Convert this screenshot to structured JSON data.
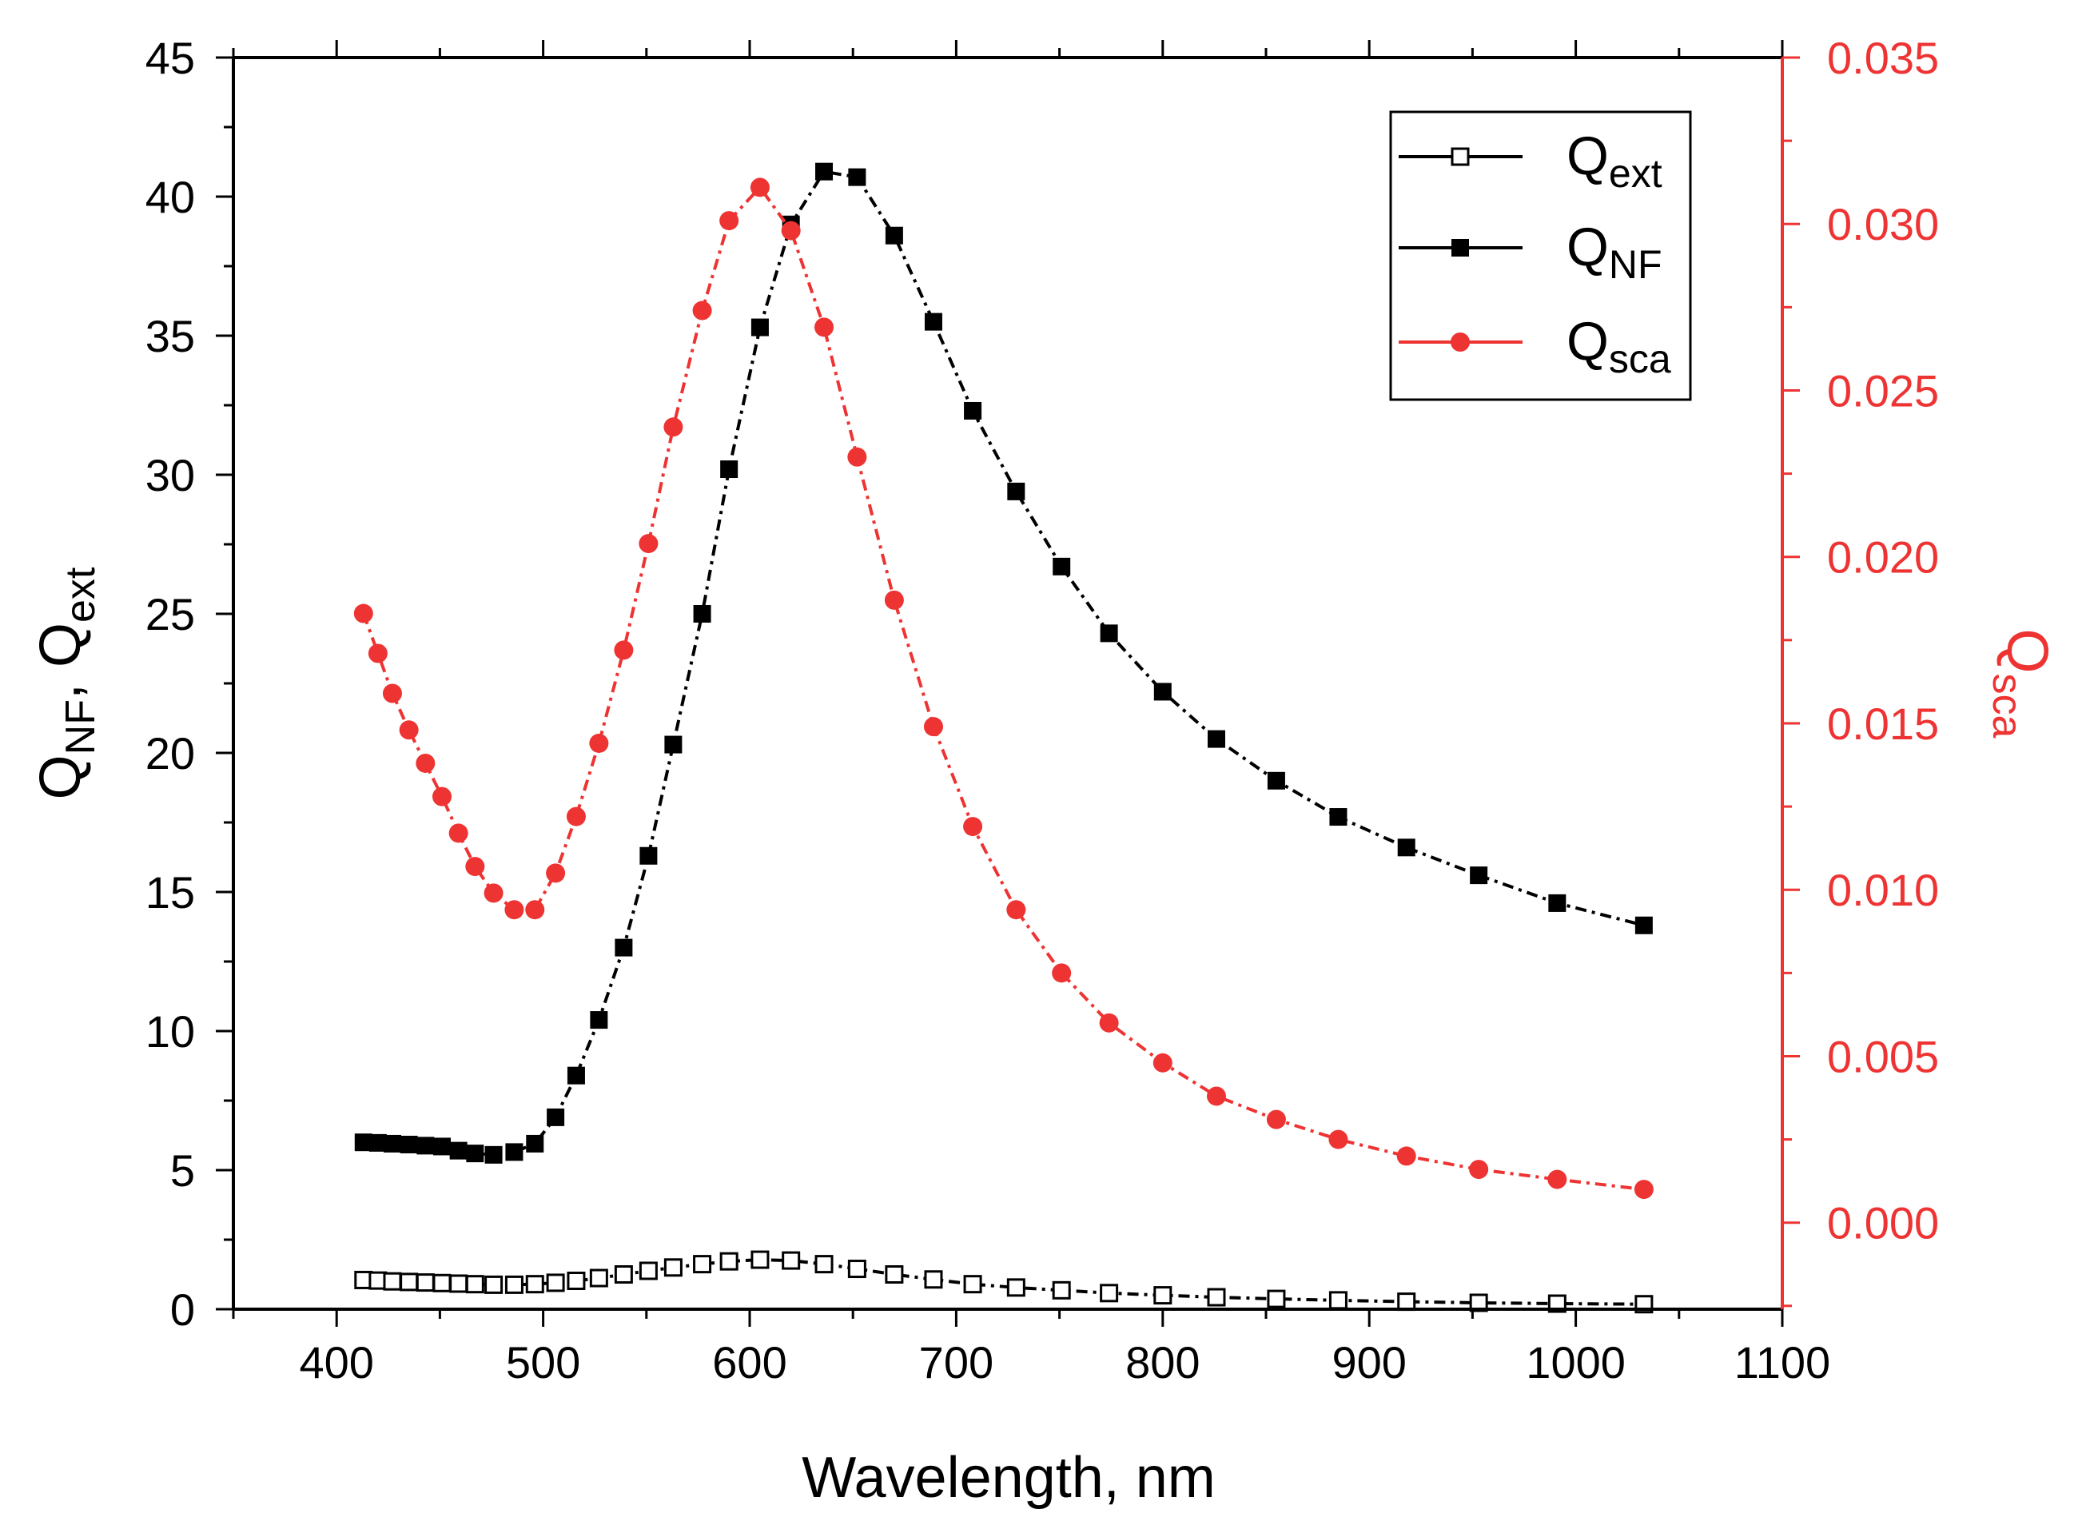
{
  "chart_data": {
    "type": "line",
    "title": "",
    "xlabel": "Wavelength, nm",
    "ylabel": {
      "main": "Q",
      "sub1": "NF",
      "sep": ", Q",
      "sub2": "ext"
    },
    "y2label": {
      "main": "Q",
      "sub": "sca"
    },
    "xlim": [
      350,
      1100
    ],
    "ylim": [
      0,
      45
    ],
    "y2lim": [
      -0.0026,
      0.035
    ],
    "xticks": [
      "400",
      "500",
      "600",
      "700",
      "800",
      "900",
      "1000",
      "1100"
    ],
    "yticks": [
      "0",
      "5",
      "10",
      "15",
      "20",
      "25",
      "30",
      "35",
      "40",
      "45"
    ],
    "y2ticks": [
      "0.000",
      "0.005",
      "0.010",
      "0.015",
      "0.020",
      "0.025",
      "0.030",
      "0.035"
    ],
    "legend_position": "top-right",
    "colors": {
      "black": "#000000",
      "red": "#ee3333"
    },
    "series": [
      {
        "name": "Q_ext",
        "legend": {
          "main": "Q",
          "sub": "ext"
        },
        "axis": "left",
        "marker": "open-square",
        "color": "#000000",
        "line_style": "dashdot",
        "x": [
          413,
          420,
          427,
          435,
          443,
          451,
          459,
          467,
          476,
          486,
          496,
          506,
          516,
          527,
          539,
          551,
          563,
          577,
          590,
          605,
          620,
          636,
          652,
          670,
          689,
          708,
          729,
          751,
          774,
          800,
          826,
          855,
          885,
          918,
          953,
          991,
          1033
        ],
        "y": [
          1.05,
          1.03,
          1.0,
          0.98,
          0.96,
          0.94,
          0.92,
          0.9,
          0.88,
          0.88,
          0.9,
          0.95,
          1.02,
          1.12,
          1.25,
          1.38,
          1.5,
          1.62,
          1.72,
          1.78,
          1.75,
          1.62,
          1.45,
          1.25,
          1.07,
          0.9,
          0.78,
          0.68,
          0.58,
          0.5,
          0.43,
          0.37,
          0.32,
          0.27,
          0.23,
          0.2,
          0.18
        ]
      },
      {
        "name": "Q_NF",
        "legend": {
          "main": "Q",
          "sub": "NF"
        },
        "axis": "left",
        "marker": "filled-square",
        "color": "#000000",
        "line_style": "dashdot",
        "x": [
          413,
          420,
          427,
          435,
          443,
          451,
          459,
          467,
          476,
          486,
          496,
          506,
          516,
          527,
          539,
          551,
          563,
          577,
          590,
          605,
          620,
          636,
          652,
          670,
          689,
          708,
          729,
          751,
          774,
          800,
          826,
          855,
          885,
          918,
          953,
          991,
          1033
        ],
        "y": [
          6.0,
          5.98,
          5.95,
          5.92,
          5.88,
          5.85,
          5.7,
          5.6,
          5.55,
          5.65,
          5.95,
          6.9,
          8.4,
          10.4,
          13.0,
          16.3,
          20.3,
          25.0,
          30.2,
          35.3,
          39.0,
          40.9,
          40.7,
          38.6,
          35.5,
          32.3,
          29.4,
          26.7,
          24.3,
          22.2,
          20.5,
          19.0,
          17.7,
          16.6,
          15.6,
          14.6,
          13.8
        ]
      },
      {
        "name": "Q_sca",
        "legend": {
          "main": "Q",
          "sub": "sca"
        },
        "axis": "right",
        "marker": "filled-circle",
        "color": "#ee3333",
        "line_style": "dashdot",
        "x": [
          413,
          420,
          427,
          435,
          443,
          451,
          459,
          467,
          476,
          486,
          496,
          506,
          516,
          527,
          539,
          551,
          563,
          577,
          590,
          605,
          620,
          636,
          652,
          670,
          689,
          708,
          729,
          751,
          774,
          800,
          826,
          855,
          885,
          918,
          953,
          991,
          1033
        ],
        "y": [
          0.0183,
          0.0171,
          0.0159,
          0.0148,
          0.0138,
          0.0128,
          0.0117,
          0.0107,
          0.0099,
          0.0094,
          0.0094,
          0.0105,
          0.0122,
          0.0144,
          0.0172,
          0.0204,
          0.0239,
          0.0274,
          0.0301,
          0.0311,
          0.0298,
          0.0269,
          0.023,
          0.0187,
          0.0149,
          0.0119,
          0.0094,
          0.0075,
          0.006,
          0.0048,
          0.0038,
          0.0031,
          0.0025,
          0.002,
          0.0016,
          0.0013,
          0.001
        ]
      }
    ]
  }
}
